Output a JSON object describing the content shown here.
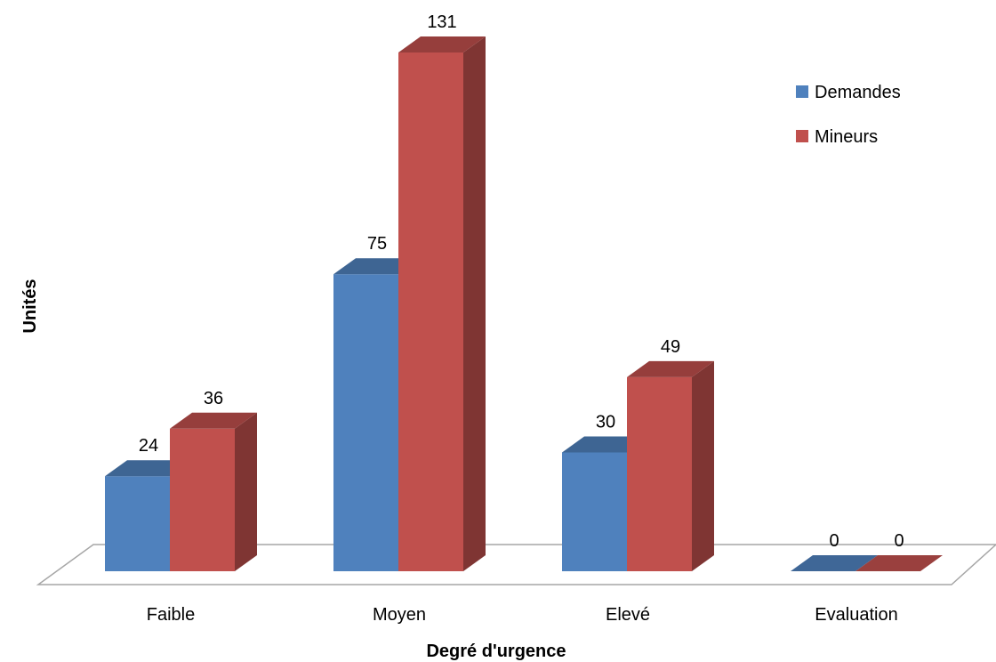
{
  "chart_data": {
    "type": "bar",
    "style": "3d-clustered-column",
    "title": "",
    "xlabel": "Degré d'urgence",
    "ylabel": "Unités",
    "categories": [
      "Faible",
      "Moyen",
      "Elevé",
      "Evaluation"
    ],
    "series": [
      {
        "name": "Demandes",
        "values": [
          24,
          75,
          30,
          0
        ],
        "color": "#4F81BD"
      },
      {
        "name": "Mineurs",
        "values": [
          36,
          131,
          49,
          0
        ],
        "color": "#C0504D"
      }
    ],
    "ylim": [
      0,
      131
    ],
    "grid": false,
    "legend": "top-right",
    "data_labels": true
  }
}
